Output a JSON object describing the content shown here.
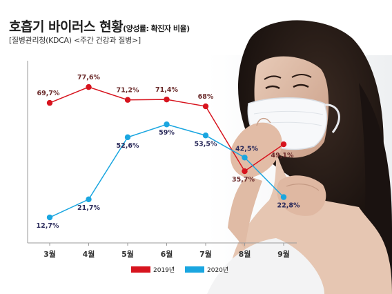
{
  "header": {
    "title": "호흡기 바이러스 현황",
    "title_sub": "(양성률: 확진자 비율)",
    "source": "[질병관리청(KDCA) <주간 건강과 질병>]"
  },
  "colors": {
    "series_2019": "#d7141e",
    "series_2020": "#1aa6e0",
    "label_2019": "#6a2a2a",
    "label_2020": "#2a2a5a",
    "axis": "#9a9a9a"
  },
  "chart_data": {
    "type": "line",
    "categories": [
      "3월",
      "4월",
      "5월",
      "6월",
      "7월",
      "8월",
      "9월"
    ],
    "ylim": [
      0,
      90
    ],
    "grid": false,
    "legend_position": "bottom-center",
    "series": [
      {
        "name": "2019년",
        "values": [
          69.7,
          77.6,
          71.2,
          71.4,
          68,
          35.7,
          49.1
        ],
        "labels": [
          "69,7%",
          "77,6%",
          "71,2%",
          "71,4%",
          "68%",
          "35,7%",
          "49,1%"
        ]
      },
      {
        "name": "2020년",
        "values": [
          12.7,
          21.7,
          52.6,
          59,
          53.5,
          42.5,
          22.8
        ],
        "labels": [
          "12,7%",
          "21,7%",
          "52,6%",
          "59%",
          "53,5%",
          "42,5%",
          "22,8%"
        ]
      }
    ]
  },
  "photo": {
    "icon": "woman-coughing-mask-photo"
  }
}
